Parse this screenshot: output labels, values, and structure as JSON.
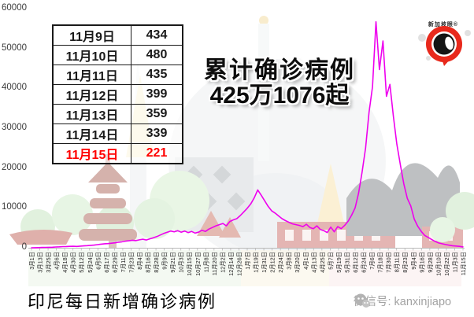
{
  "annotation": {
    "line1": "累计确诊病例",
    "line2": "425万1076起"
  },
  "caption": "印尼每日新增确诊病例",
  "watermark": {
    "label": "微信号: kanxinjiapo"
  },
  "logo": {
    "text": "新加坡眼®"
  },
  "table": {
    "rows": [
      {
        "date": "11月9日",
        "value": "434",
        "highlight": false
      },
      {
        "date": "11月10日",
        "value": "480",
        "highlight": false
      },
      {
        "date": "11月11日",
        "value": "435",
        "highlight": false
      },
      {
        "date": "11月12日",
        "value": "399",
        "highlight": false
      },
      {
        "date": "11月13日",
        "value": "359",
        "highlight": false
      },
      {
        "date": "11月14日",
        "value": "339",
        "highlight": false
      },
      {
        "date": "11月15日",
        "value": "221",
        "highlight": true
      }
    ]
  },
  "colors": {
    "line": "#ee00ee",
    "highlight_red": "#ff0000",
    "axis": "#b9b9b9",
    "logo_red": "#e8291c",
    "watermark_gray": "#a3a3a3"
  },
  "chart_data": {
    "type": "line",
    "title": "印尼每日新增确诊病例",
    "ylim": [
      0,
      60000
    ],
    "grid": false,
    "legend": "none",
    "y_ticks": [
      0,
      10000,
      20000,
      30000,
      40000,
      50000,
      60000
    ],
    "y_tick_labels": [
      "0",
      "10000",
      "20000",
      "30000",
      "40000",
      "50000",
      "60000"
    ],
    "x_tick_labels": [
      "3月1日",
      "3月13日",
      "3月25日",
      "4月6日",
      "4月18日",
      "4月30日",
      "5月12日",
      "5月24日",
      "6月5日",
      "6月17日",
      "6月29日",
      "7月11日",
      "7月23日",
      "8月4日",
      "8月16日",
      "8月28日",
      "9月9日",
      "9月21日",
      "10月3日",
      "10月15日",
      "10月27日",
      "11月8日",
      "11月20日",
      "12月2日",
      "12月14日",
      "12月26日",
      "1月7日",
      "1月19日",
      "1月31日",
      "2月12日",
      "2月24日",
      "3月8日",
      "3月20日",
      "4月1日",
      "4月13日",
      "4月25日",
      "5月7日",
      "5月19日",
      "5月31日",
      "6月12日",
      "6月24日",
      "7月6日",
      "7月18日",
      "7月30日",
      "8月11日",
      "8月23日",
      "9月4日",
      "9月16日",
      "9月28日",
      "10月10日",
      "10月22日",
      "11月3日",
      "11月15日"
    ],
    "series": [
      {
        "name": "每日新增确诊病例",
        "color": "#ee00ee",
        "values": [
          5,
          20,
          45,
          75,
          95,
          110,
          140,
          190,
          240,
          290,
          320,
          350,
          370,
          340,
          420,
          480,
          530,
          620,
          680,
          780,
          900,
          1000,
          1050,
          1150,
          1250,
          1400,
          1500,
          1650,
          1750,
          1900,
          1800,
          2000,
          2150,
          1950,
          2250,
          2500,
          2800,
          3200,
          3600,
          3900,
          4200,
          4000,
          4300,
          3900,
          4200,
          3800,
          4100,
          3700,
          3900,
          4400,
          4100,
          4700,
          5100,
          5500,
          5800,
          6100,
          5500,
          6600,
          7000,
          7300,
          8100,
          9000,
          9900,
          11000,
          12500,
          14500,
          13200,
          11800,
          10400,
          9300,
          8700,
          8000,
          7300,
          6800,
          6400,
          6000,
          5800,
          5600,
          5300,
          5900,
          5100,
          4800,
          5500,
          4600,
          4300,
          3800,
          5200,
          4000,
          5300,
          4800,
          5600,
          6700,
          8200,
          10000,
          13700,
          18900,
          25000,
          34000,
          40400,
          56700,
          44700,
          51900,
          38000,
          41000,
          33000,
          26000,
          20800,
          16000,
          12400,
          10500,
          7200,
          5400,
          4100,
          3100,
          2600,
          2100,
          1600,
          1200,
          1000,
          800,
          650,
          520,
          430,
          360,
          221
        ]
      }
    ]
  }
}
